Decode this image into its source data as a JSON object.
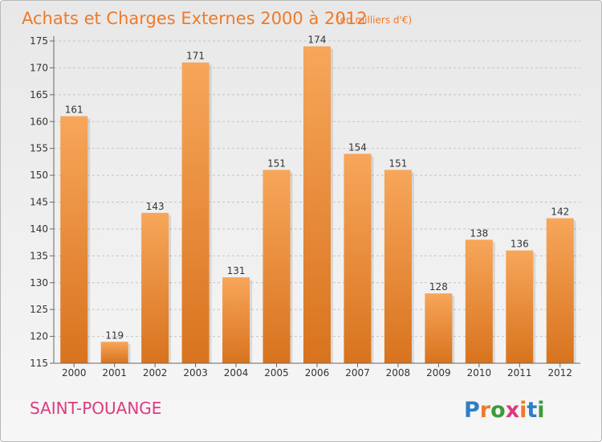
{
  "chart_data": {
    "type": "bar",
    "title": "Achats et Charges Externes 2000 à 2012",
    "subtitle": "(en milliers d'€)",
    "categories": [
      "2000",
      "2001",
      "2002",
      "2003",
      "2004",
      "2005",
      "2006",
      "2007",
      "2008",
      "2009",
      "2010",
      "2011",
      "2012"
    ],
    "values": [
      161,
      119,
      143,
      171,
      131,
      151,
      174,
      154,
      151,
      128,
      138,
      136,
      142
    ],
    "ylim": [
      115,
      175
    ],
    "yticks": [
      115,
      120,
      125,
      130,
      135,
      140,
      145,
      150,
      155,
      160,
      165,
      170,
      175
    ],
    "xlabel": "",
    "ylabel": "",
    "grid": "horizontal dashed",
    "legend": "none",
    "bar_color_top": "#f7a65a",
    "bar_color_bottom": "#d8731e"
  },
  "footer": {
    "place_name": "SAINT-POUANGE",
    "logo_text": "Proxiti",
    "logo_letter_colors": [
      "#2e7ec5",
      "#ee7a2a",
      "#3b9b3b",
      "#dd3a7f",
      "#ee7a2a",
      "#2e7ec5",
      "#3b9b3b"
    ]
  }
}
